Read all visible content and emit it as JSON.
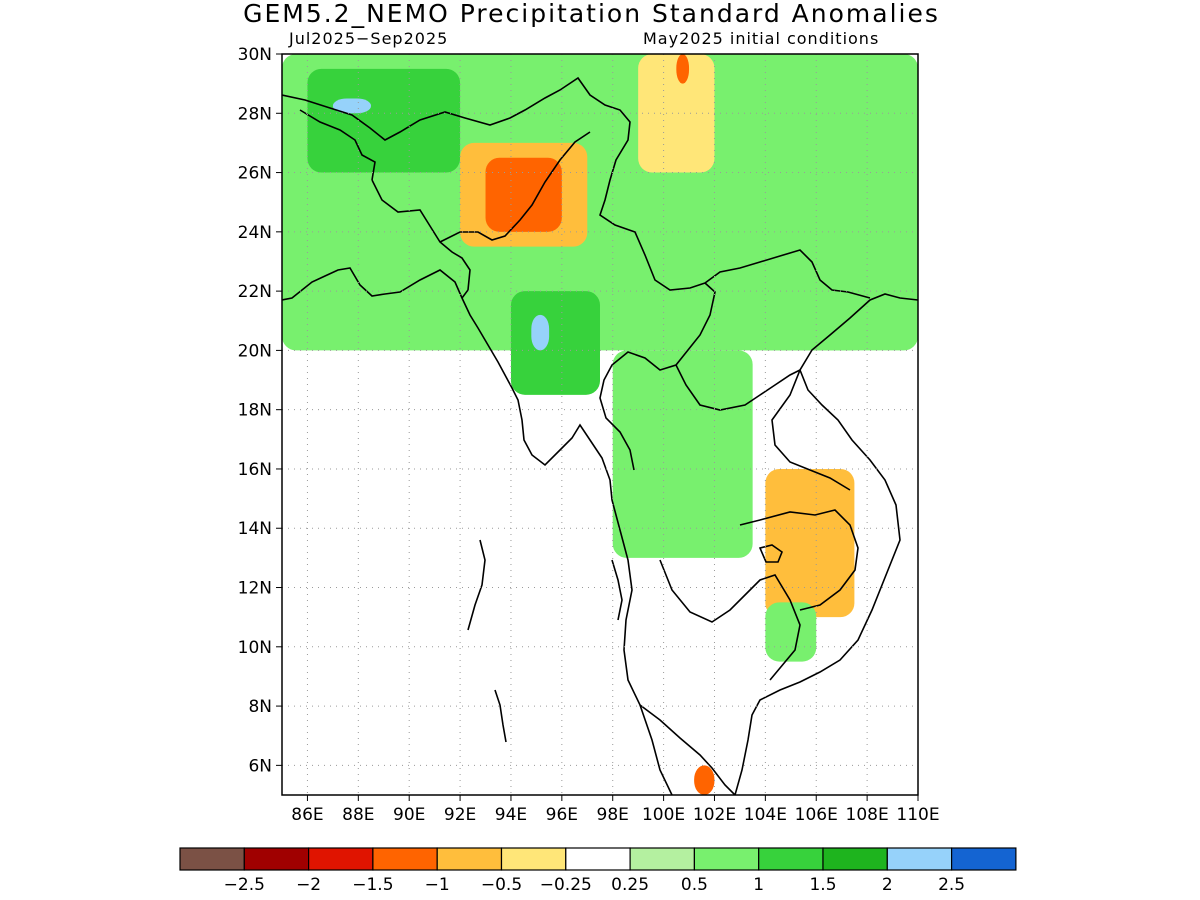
{
  "title": "GEM5.2_NEMO Precipitation Standard Anomalies",
  "period": "Jul2025−Sep2025",
  "initial_conditions": "May2025 initial conditions",
  "map": {
    "lon_range": [
      85,
      110
    ],
    "lat_range": [
      5,
      30
    ],
    "lat_ticks": [
      {
        "value": 30,
        "label": "30N"
      },
      {
        "value": 28,
        "label": "28N"
      },
      {
        "value": 26,
        "label": "26N"
      },
      {
        "value": 24,
        "label": "24N"
      },
      {
        "value": 22,
        "label": "22N"
      },
      {
        "value": 20,
        "label": "20N"
      },
      {
        "value": 18,
        "label": "18N"
      },
      {
        "value": 16,
        "label": "16N"
      },
      {
        "value": 14,
        "label": "14N"
      },
      {
        "value": 12,
        "label": "12N"
      },
      {
        "value": 10,
        "label": "10N"
      },
      {
        "value": 8,
        "label": "8N"
      },
      {
        "value": 6,
        "label": "6N"
      }
    ],
    "lon_ticks": [
      {
        "value": 86,
        "label": "86E"
      },
      {
        "value": 88,
        "label": "88E"
      },
      {
        "value": 90,
        "label": "90E"
      },
      {
        "value": 92,
        "label": "92E"
      },
      {
        "value": 94,
        "label": "94E"
      },
      {
        "value": 96,
        "label": "96E"
      },
      {
        "value": 98,
        "label": "98E"
      },
      {
        "value": 100,
        "label": "100E"
      },
      {
        "value": 102,
        "label": "102E"
      },
      {
        "value": 104,
        "label": "104E"
      },
      {
        "value": 106,
        "label": "106E"
      },
      {
        "value": 108,
        "label": "108E"
      },
      {
        "value": 110,
        "label": "110E"
      }
    ],
    "grid": true
  },
  "colorbar": {
    "colors": [
      "#7b5145",
      "#a00000",
      "#e01400",
      "#ff6400",
      "#ffbe3c",
      "#ffe678",
      "#ffffff",
      "#b4f0a0",
      "#78f06e",
      "#37d23c",
      "#1eb41e",
      "#96d2fa",
      "#1464d2"
    ],
    "labels": [
      "−2.5",
      "−2",
      "−1.5",
      "−1",
      "−0.5",
      "−0.25",
      "0.25",
      "0.5",
      "1",
      "1.5",
      "2",
      "2.5"
    ]
  },
  "chart_data": {
    "type": "heatmap",
    "variable": "Precipitation Standard Anomalies",
    "period": "Jul2025−Sep2025",
    "regions": [
      {
        "lon": [
          85,
          110
        ],
        "lat": [
          20,
          30
        ],
        "anomaly": 0.75
      },
      {
        "lon": [
          86,
          92
        ],
        "lat": [
          26,
          29.5
        ],
        "anomaly": 1.25
      },
      {
        "lon": [
          87,
          88.5
        ],
        "lat": [
          28,
          28.5
        ],
        "anomaly": 2.25
      },
      {
        "lon": [
          92,
          97
        ],
        "lat": [
          23.5,
          27
        ],
        "anomaly": -0.75
      },
      {
        "lon": [
          93,
          96
        ],
        "lat": [
          24,
          26.5
        ],
        "anomaly": -1.25
      },
      {
        "lon": [
          99,
          102
        ],
        "lat": [
          26,
          30
        ],
        "anomaly": -0.4
      },
      {
        "lon": [
          100.5,
          101
        ],
        "lat": [
          29,
          30
        ],
        "anomaly": -1.25
      },
      {
        "lon": [
          94,
          97.5
        ],
        "lat": [
          18.5,
          22
        ],
        "anomaly": 1.25
      },
      {
        "lon": [
          94.8,
          95.5
        ],
        "lat": [
          20,
          21.2
        ],
        "anomaly": 2.25
      },
      {
        "lon": [
          98,
          103.5
        ],
        "lat": [
          13,
          20
        ],
        "anomaly": 0.6
      },
      {
        "lon": [
          103.5,
          108
        ],
        "lat": [
          20,
          23
        ],
        "anomaly": 0.8
      },
      {
        "lon": [
          104,
          107.5
        ],
        "lat": [
          11,
          16
        ],
        "anomaly": -0.6
      },
      {
        "lon": [
          105,
          107
        ],
        "lat": [
          12,
          14.5
        ],
        "anomaly": -0.75
      },
      {
        "lon": [
          104,
          106
        ],
        "lat": [
          9.5,
          11.5
        ],
        "anomaly": 0.6
      },
      {
        "lon": [
          101.2,
          102
        ],
        "lat": [
          5,
          6
        ],
        "anomaly": -1.25
      }
    ]
  }
}
